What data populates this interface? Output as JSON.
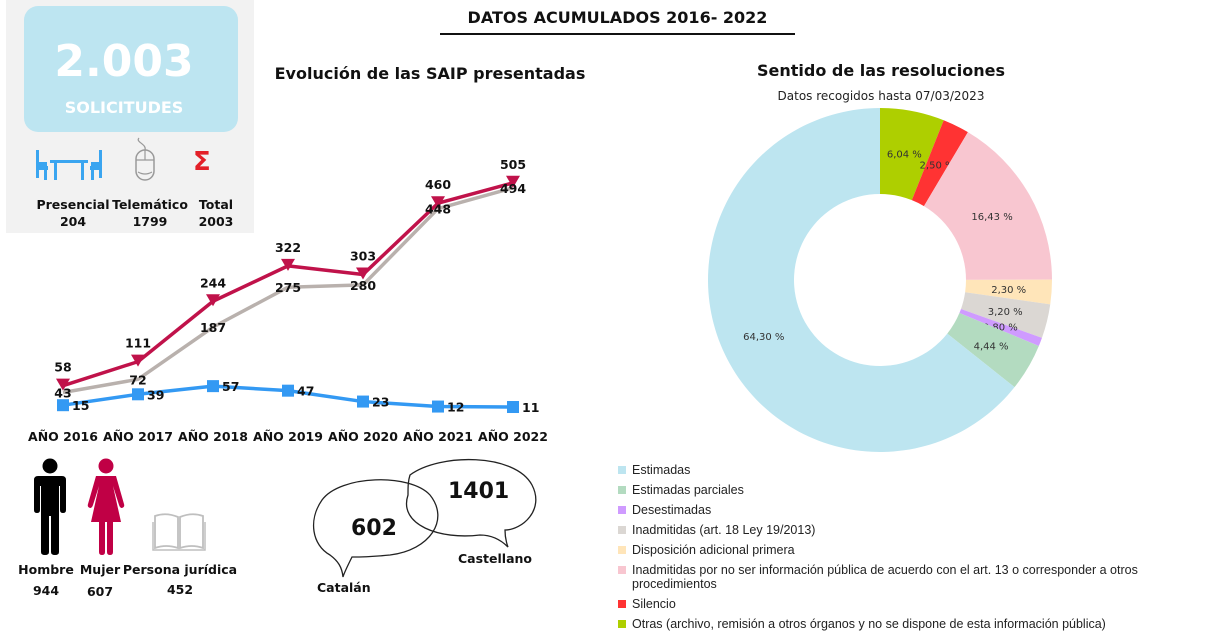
{
  "header": {
    "title": "DATOS ACUMULADOS 2016- 2022"
  },
  "summary": {
    "total_value": "2.003",
    "total_label": "SOLICITUDES",
    "channels": [
      {
        "icon": "table-chairs-icon",
        "label": "Presencial",
        "value": "204",
        "color": "#3aa5f0"
      },
      {
        "icon": "mouse-icon",
        "label": "Telemático",
        "value": "1799",
        "color": "#a6a6a6"
      },
      {
        "icon": "sigma-icon",
        "label": "Total",
        "value": "2003",
        "color": "#e32028"
      }
    ]
  },
  "demographics": {
    "persons": [
      {
        "icon": "man-icon",
        "label": "Hombre",
        "value": "944",
        "color": "#000000"
      },
      {
        "icon": "woman-icon",
        "label": "Mujer",
        "value": "607",
        "color": "#c00045"
      },
      {
        "icon": "book-icon",
        "label": "Persona jurídica",
        "value": "452",
        "color": "#bfbfbf"
      }
    ],
    "languages": [
      {
        "icon": "speech-bubble-icon",
        "label": "Catalán",
        "value": "602"
      },
      {
        "icon": "speech-bubble-icon",
        "label": "Castellano",
        "value": "1401"
      }
    ]
  },
  "chart_data": [
    {
      "type": "line",
      "title": "Evolución de las SAIP presentadas",
      "categories": [
        "AÑO 2016",
        "AÑO 2017",
        "AÑO 2018",
        "AÑO 2019",
        "AÑO 2020",
        "AÑO 2021",
        "AÑO 2022"
      ],
      "series": [
        {
          "name": "Total",
          "values": [
            58,
            111,
            244,
            322,
            303,
            460,
            505
          ],
          "color": "#c0124a",
          "marker": "triangle-down"
        },
        {
          "name": "Telemático",
          "values": [
            43,
            72,
            187,
            275,
            280,
            448,
            494
          ],
          "color": "#b9b1ad",
          "marker": "none"
        },
        {
          "name": "Presencial",
          "values": [
            15,
            39,
            57,
            47,
            23,
            12,
            11
          ],
          "color": "#3399f3",
          "marker": "square"
        }
      ],
      "ylim": [
        0,
        520
      ],
      "grid": false,
      "xlabel": "",
      "ylabel": ""
    },
    {
      "type": "pie",
      "title": "Sentido de las resoluciones",
      "subtitle": "Datos recogidos hasta 07/03/2023",
      "donut": true,
      "slices": [
        {
          "label": "Otras (archivo, remisión a otros órganos y no se dispone de esta información pública)",
          "value": 6.04,
          "text": "6,04 %",
          "color": "#aecf00"
        },
        {
          "label": "Silencio",
          "value": 2.5,
          "text": "2,50 %",
          "color": "#ff3333"
        },
        {
          "label": "Inadmitidas por no ser información pública de acuerdo con el art. 13 o corresponder a otros procedimientos",
          "value": 16.43,
          "text": "16,43 %",
          "color": "#f8c6d0"
        },
        {
          "label": "Disposición adicional primera",
          "value": 2.3,
          "text": "2,30 %",
          "color": "#ffe5b9"
        },
        {
          "label": "Inadmitidas (art. 18 Ley 19/2013)",
          "value": 3.2,
          "text": "3,20 %",
          "color": "#dbd7d3"
        },
        {
          "label": "Desestimadas",
          "value": 0.8,
          "text": "0,80 %",
          "color": "#cf9bff"
        },
        {
          "label": "Estimadas parciales",
          "value": 4.44,
          "text": "4,44 %",
          "color": "#b3dbc0"
        },
        {
          "label": "Estimadas",
          "value": 64.3,
          "text": "64,30 %",
          "color": "#bde5f0"
        }
      ],
      "legend": [
        {
          "label": "Estimadas",
          "color": "#bde5f0"
        },
        {
          "label": "Estimadas parciales",
          "color": "#b3dbc0"
        },
        {
          "label": "Desestimadas",
          "color": "#cf9bff"
        },
        {
          "label": "Inadmitidas (art. 18 Ley 19/2013)",
          "color": "#dbd7d3"
        },
        {
          "label": "Disposición adicional primera",
          "color": "#ffe5b9"
        },
        {
          "label": "Inadmitidas por no ser información pública de acuerdo con el art. 13 o corresponder a otros procedimientos",
          "color": "#f8c6d0"
        },
        {
          "label": "Silencio",
          "color": "#ff3333"
        },
        {
          "label": "Otras (archivo, remisión a otros órganos y no se dispone de esta información pública)",
          "color": "#aecf00"
        }
      ],
      "legend_position": "bottom"
    }
  ]
}
